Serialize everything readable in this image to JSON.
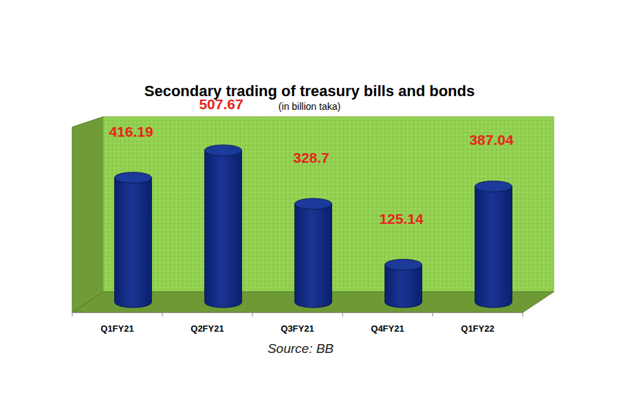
{
  "chart_data": {
    "type": "bar",
    "title": "Secondary trading of treasury bills and bonds",
    "subtitle": "(in billion taka)",
    "source": "Source: BB",
    "categories": [
      "Q1FY21",
      "Q2FY21",
      "Q3FY21",
      "Q4FY21",
      "Q1FY22"
    ],
    "values": [
      416.19,
      507.67,
      328.7,
      125.14,
      387.04
    ],
    "color": "#0a1f6e",
    "ylim": [
      0,
      620
    ],
    "tick_labels": "x",
    "data_labels": true
  }
}
